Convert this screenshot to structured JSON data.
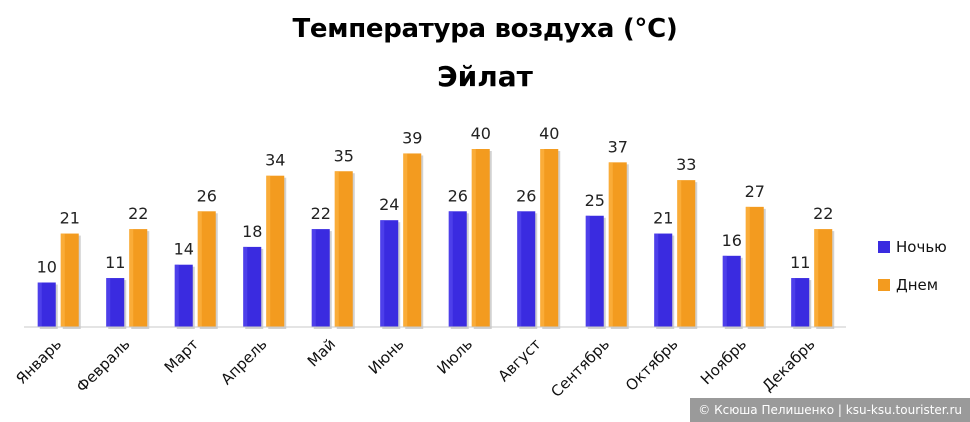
{
  "chart_data": {
    "type": "bar",
    "title": "Температура воздуха (°С)",
    "subtitle": "Эйлат",
    "categories": [
      "Январь",
      "Февраль",
      "Март",
      "Апрель",
      "Май",
      "Июнь",
      "Июль",
      "Август",
      "Сентябрь",
      "Октябрь",
      "Ноябрь",
      "Декабрь"
    ],
    "series": [
      {
        "name": "Ночью",
        "color": "#3a2be0",
        "values": [
          10,
          11,
          14,
          18,
          22,
          24,
          26,
          26,
          25,
          21,
          16,
          11
        ]
      },
      {
        "name": "Днем",
        "color": "#f39b1f",
        "values": [
          21,
          22,
          26,
          34,
          35,
          39,
          40,
          40,
          37,
          33,
          27,
          22
        ]
      }
    ],
    "ylim": [
      0,
      40
    ],
    "grid": false,
    "legend_position": "right"
  },
  "watermark": "© Ксюша Пелишенко | ksu-ksu.tourister.ru"
}
